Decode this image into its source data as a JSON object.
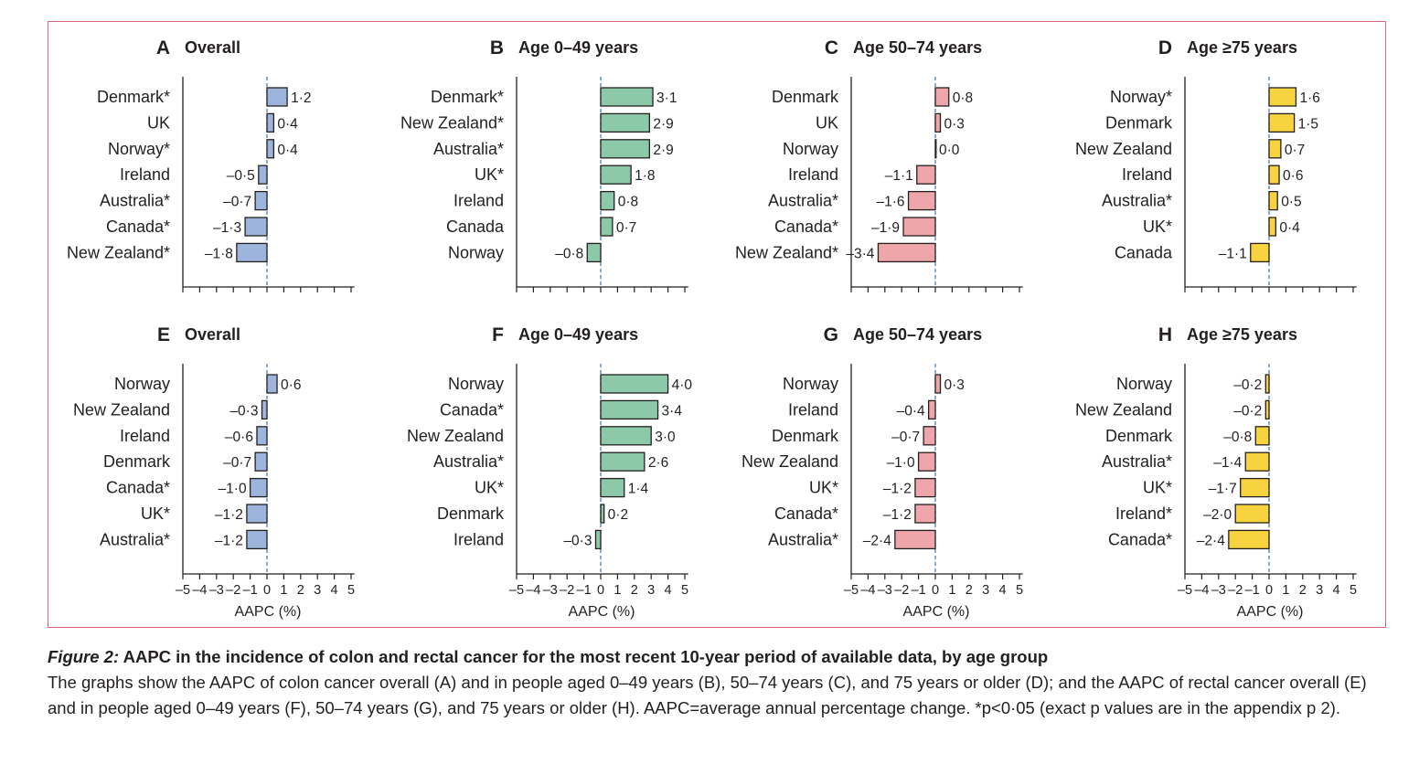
{
  "colors": {
    "frame": "#d9657a",
    "colon_overall": "#9db4dc",
    "age_0_49": "#8cc9a8",
    "age_50_74": "#eea6aa",
    "age_75_plus": "#f7d33f",
    "bar_stroke": "#231f20",
    "zero_line": "#4a7fb0"
  },
  "chart_data": [
    {
      "id": "A",
      "type": "bar",
      "orientation": "horizontal",
      "letter": "A",
      "title": "Overall",
      "color_key": "colon_overall",
      "categories": [
        "Denmark*",
        "UK",
        "Norway*",
        "Ireland",
        "Australia*",
        "Canada*",
        "New Zealand*"
      ],
      "values": [
        1.2,
        0.4,
        0.4,
        -0.5,
        -0.7,
        -1.3,
        -1.8
      ],
      "labels": [
        "1·2",
        "0·4",
        "0·4",
        "–0·5",
        "–0·7",
        "–1·3",
        "–1·8"
      ],
      "xlim": [
        -5,
        5
      ],
      "show_ticklabels": false,
      "xlabel": ""
    },
    {
      "id": "B",
      "type": "bar",
      "orientation": "horizontal",
      "letter": "B",
      "title": "Age 0–49 years",
      "color_key": "age_0_49",
      "categories": [
        "Denmark*",
        "New Zealand*",
        "Australia*",
        "UK*",
        "Ireland",
        "Canada",
        "Norway"
      ],
      "values": [
        3.1,
        2.9,
        2.9,
        1.8,
        0.8,
        0.7,
        -0.8
      ],
      "labels": [
        "3·1",
        "2·9",
        "2·9",
        "1·8",
        "0·8",
        "0·7",
        "–0·8"
      ],
      "xlim": [
        -5,
        5
      ],
      "show_ticklabels": false,
      "xlabel": ""
    },
    {
      "id": "C",
      "type": "bar",
      "orientation": "horizontal",
      "letter": "C",
      "title": "Age 50–74 years",
      "color_key": "age_50_74",
      "categories": [
        "Denmark",
        "UK",
        "Norway",
        "Ireland",
        "Australia*",
        "Canada*",
        "New Zealand*"
      ],
      "values": [
        0.8,
        0.3,
        0.0,
        -1.1,
        -1.6,
        -1.9,
        -3.4
      ],
      "labels": [
        "0·8",
        "0·3",
        "0·0",
        "–1·1",
        "–1·6",
        "–1·9",
        "–3·4"
      ],
      "xlim": [
        -5,
        5
      ],
      "show_ticklabels": false,
      "xlabel": ""
    },
    {
      "id": "D",
      "type": "bar",
      "orientation": "horizontal",
      "letter": "D",
      "title": "Age ≥75 years",
      "color_key": "age_75_plus",
      "categories": [
        "Norway*",
        "Denmark",
        "New Zealand",
        "Ireland",
        "Australia*",
        "UK*",
        "Canada"
      ],
      "values": [
        1.6,
        1.5,
        0.7,
        0.6,
        0.5,
        0.4,
        -1.1
      ],
      "labels": [
        "1·6",
        "1·5",
        "0·7",
        "0·6",
        "0·5",
        "0·4",
        "–1·1"
      ],
      "xlim": [
        -5,
        5
      ],
      "show_ticklabels": false,
      "xlabel": ""
    },
    {
      "id": "E",
      "type": "bar",
      "orientation": "horizontal",
      "letter": "E",
      "title": "Overall",
      "color_key": "colon_overall",
      "categories": [
        "Norway",
        "New Zealand",
        "Ireland",
        "Denmark",
        "Canada*",
        "UK*",
        "Australia*"
      ],
      "values": [
        0.6,
        -0.3,
        -0.6,
        -0.7,
        -1.0,
        -1.2,
        -1.2
      ],
      "labels": [
        "0·6",
        "–0·3",
        "–0·6",
        "–0·7",
        "–1·0",
        "–1·2",
        "–1·2"
      ],
      "xlim": [
        -5,
        5
      ],
      "show_ticklabels": true,
      "xlabel": "AAPC (%)"
    },
    {
      "id": "F",
      "type": "bar",
      "orientation": "horizontal",
      "letter": "F",
      "title": "Age 0–49 years",
      "color_key": "age_0_49",
      "categories": [
        "Norway",
        "Canada*",
        "New Zealand",
        "Australia*",
        "UK*",
        "Denmark",
        "Ireland"
      ],
      "values": [
        4.0,
        3.4,
        3.0,
        2.6,
        1.4,
        0.2,
        -0.3
      ],
      "labels": [
        "4·0",
        "3·4",
        "3·0",
        "2·6",
        "1·4",
        "0·2",
        "–0·3"
      ],
      "xlim": [
        -5,
        5
      ],
      "show_ticklabels": true,
      "xlabel": "AAPC (%)"
    },
    {
      "id": "G",
      "type": "bar",
      "orientation": "horizontal",
      "letter": "G",
      "title": "Age 50–74 years",
      "color_key": "age_50_74",
      "categories": [
        "Norway",
        "Ireland",
        "Denmark",
        "New Zealand",
        "UK*",
        "Canada*",
        "Australia*"
      ],
      "values": [
        0.3,
        -0.4,
        -0.7,
        -1.0,
        -1.2,
        -1.2,
        -2.4
      ],
      "labels": [
        "0·3",
        "–0·4",
        "–0·7",
        "–1·0",
        "–1·2",
        "–1·2",
        "–2·4"
      ],
      "xlim": [
        -5,
        5
      ],
      "show_ticklabels": true,
      "xlabel": "AAPC (%)"
    },
    {
      "id": "H",
      "type": "bar",
      "orientation": "horizontal",
      "letter": "H",
      "title": "Age ≥75 years",
      "color_key": "age_75_plus",
      "categories": [
        "Norway",
        "New Zealand",
        "Denmark",
        "Australia*",
        "UK*",
        "Ireland*",
        "Canada*"
      ],
      "values": [
        -0.2,
        -0.2,
        -0.8,
        -1.4,
        -1.7,
        -2.0,
        -2.4
      ],
      "labels": [
        "–0·2",
        "–0·2",
        "–0·8",
        "–1·4",
        "–1·7",
        "–2·0",
        "–2·4"
      ],
      "xlim": [
        -5,
        5
      ],
      "show_ticklabels": true,
      "xlabel": "AAPC (%)"
    }
  ],
  "tick_labels": [
    "–5",
    "–4",
    "–3",
    "–2",
    "–1",
    "0",
    "1",
    "2",
    "3",
    "4",
    "5"
  ],
  "caption": {
    "figure_label": "Figure 2:",
    "title": "AAPC in the incidence of colon and rectal cancer for the most recent 10-year period of available data, by age group",
    "body": "The graphs show the AAPC of colon cancer overall (A) and in people aged 0–49 years (B), 50–74 years (C), and 75 years or older (D); and the AAPC of rectal cancer overall (E) and in people aged 0–49 years (F), 50–74 years (G), and 75 years or older (H). AAPC=average annual percentage change. *p<0·05 (exact p values are in the appendix p 2)."
  }
}
